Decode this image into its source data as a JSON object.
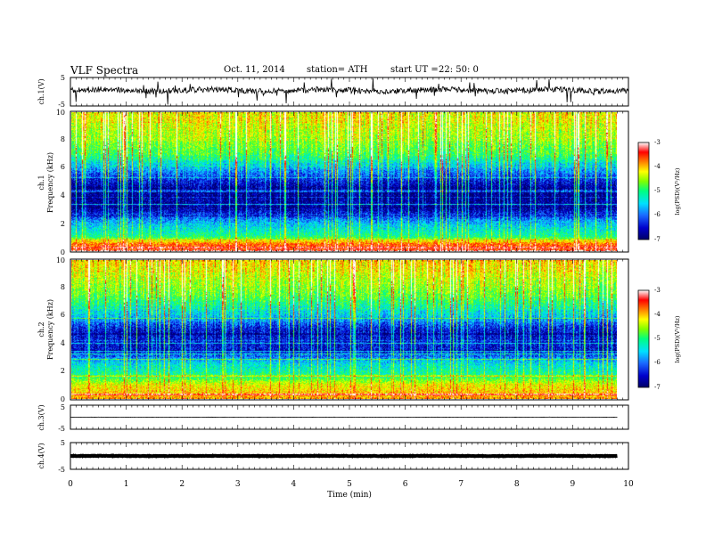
{
  "header": {
    "title": "VLF  Spectra",
    "date": "Oct. 11, 2014",
    "station": "station= ATH",
    "start_label": "start  UT  =",
    "start_time": "22: 50: 0"
  },
  "chart_data": [
    {
      "type": "line",
      "panel": "ch1-waveform",
      "ylabel": "ch.1(V)",
      "ylim": [
        -5,
        5
      ],
      "yticks": [
        "5",
        "-5"
      ],
      "xlim": [
        0,
        10
      ],
      "baseline": 0.5,
      "noise_amplitude": 1.0,
      "color": "#000000"
    },
    {
      "type": "heatmap",
      "panel": "ch1-spectrogram",
      "ylabel": "Frequency  (kHz)",
      "channel_label": "ch.1",
      "ylim": [
        0,
        10
      ],
      "yticks": [
        "0",
        "2",
        "4",
        "6",
        "8",
        "10"
      ],
      "xlim": [
        0,
        9.8
      ],
      "colorbar": {
        "label": "log(PSD)(V²/Hz)",
        "range": [
          -7,
          -3
        ],
        "ticks": [
          "-3",
          "-4",
          "-5",
          "-6",
          "-7"
        ]
      },
      "description_profile": [
        {
          "f": 0.0,
          "log_psd": -3.6
        },
        {
          "f": 0.5,
          "log_psd": -3.8
        },
        {
          "f": 1.0,
          "log_psd": -5.2
        },
        {
          "f": 2.0,
          "log_psd": -5.8
        },
        {
          "f": 3.0,
          "log_psd": -6.7
        },
        {
          "f": 4.5,
          "log_psd": -6.8
        },
        {
          "f": 6.0,
          "log_psd": -5.8
        },
        {
          "f": 7.0,
          "log_psd": -5.0
        },
        {
          "f": 8.5,
          "log_psd": -4.6
        },
        {
          "f": 10.0,
          "log_psd": -4.3
        }
      ]
    },
    {
      "type": "heatmap",
      "panel": "ch2-spectrogram",
      "ylabel": "Frequency  (kHz)",
      "channel_label": "ch.2",
      "ylim": [
        0,
        10
      ],
      "yticks": [
        "0",
        "2",
        "4",
        "6",
        "8",
        "10"
      ],
      "xlim": [
        0,
        9.8
      ],
      "colorbar": {
        "label": "log(PSD)(V²/Hz)",
        "range": [
          -7,
          -3
        ],
        "ticks": [
          "-3",
          "-4",
          "-5",
          "-6",
          "-7"
        ]
      },
      "description_profile": [
        {
          "f": 0.0,
          "log_psd": -4.0
        },
        {
          "f": 1.0,
          "log_psd": -4.4
        },
        {
          "f": 1.6,
          "log_psd": -5.2
        },
        {
          "f": 2.5,
          "log_psd": -5.6
        },
        {
          "f": 3.5,
          "log_psd": -6.5
        },
        {
          "f": 5.0,
          "log_psd": -6.5
        },
        {
          "f": 6.0,
          "log_psd": -5.7
        },
        {
          "f": 7.5,
          "log_psd": -4.9
        },
        {
          "f": 10.0,
          "log_psd": -4.2
        }
      ]
    },
    {
      "type": "line",
      "panel": "ch3-waveform",
      "ylabel": "ch.3(V)",
      "ylim": [
        -5,
        5
      ],
      "yticks": [
        "5",
        "-5"
      ],
      "xlim": [
        0,
        9.8
      ],
      "baseline": 0.0,
      "noise_amplitude": 0.05,
      "color": "#000000"
    },
    {
      "type": "line",
      "panel": "ch4-waveform",
      "ylabel": "ch.4(V)",
      "ylim": [
        -5,
        5
      ],
      "yticks": [
        "5",
        "-5"
      ],
      "xlim": [
        0,
        9.8
      ],
      "baseline": 0.0,
      "noise_amplitude": 0.1,
      "color": "#000000"
    }
  ],
  "x_axis": {
    "label": "Time  (min)",
    "ticks": [
      "0",
      "1",
      "2",
      "3",
      "4",
      "5",
      "6",
      "7",
      "8",
      "9",
      "10"
    ]
  },
  "colors": {
    "colormap": [
      "#000066",
      "#0000cc",
      "#1a6aff",
      "#00e0ff",
      "#00ff80",
      "#80ff00",
      "#ffff00",
      "#ff8000",
      "#ff0000",
      "#ffffff"
    ]
  }
}
